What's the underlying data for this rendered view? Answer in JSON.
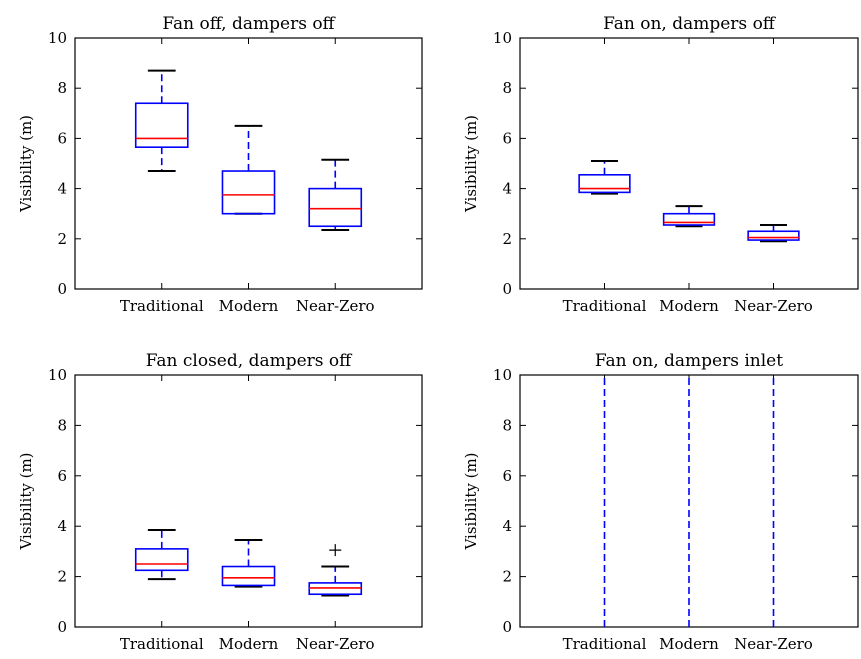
{
  "chart_data": [
    {
      "type": "boxplot",
      "title": "Fan off, dampers off",
      "ylabel": "Visibility (m)",
      "xlabel": "",
      "ylim": [
        0,
        10
      ],
      "yticks": [
        0,
        2,
        4,
        6,
        8,
        10
      ],
      "grid": false,
      "categories": [
        "Traditional",
        "Modern",
        "Near-Zero"
      ],
      "boxes": [
        {
          "whislo": 4.7,
          "q1": 5.65,
          "med": 6.0,
          "q3": 7.4,
          "whishi": 8.7,
          "fliers": []
        },
        {
          "whislo": 3.0,
          "q1": 3.0,
          "med": 3.75,
          "q3": 4.7,
          "whishi": 6.5,
          "fliers": []
        },
        {
          "whislo": 2.35,
          "q1": 2.5,
          "med": 3.2,
          "q3": 4.0,
          "whishi": 5.15,
          "fliers": []
        }
      ]
    },
    {
      "type": "boxplot",
      "title": "Fan on, dampers off",
      "ylabel": "Visibility (m)",
      "xlabel": "",
      "ylim": [
        0,
        10
      ],
      "yticks": [
        0,
        2,
        4,
        6,
        8,
        10
      ],
      "grid": false,
      "categories": [
        "Traditional",
        "Modern",
        "Near-Zero"
      ],
      "boxes": [
        {
          "whislo": 3.8,
          "q1": 3.85,
          "med": 4.0,
          "q3": 4.55,
          "whishi": 5.1,
          "fliers": []
        },
        {
          "whislo": 2.5,
          "q1": 2.55,
          "med": 2.65,
          "q3": 3.0,
          "whishi": 3.3,
          "fliers": []
        },
        {
          "whislo": 1.9,
          "q1": 1.95,
          "med": 2.05,
          "q3": 2.3,
          "whishi": 2.55,
          "fliers": []
        }
      ]
    },
    {
      "type": "boxplot",
      "title": "Fan closed, dampers off",
      "ylabel": "Visibility (m)",
      "xlabel": "",
      "ylim": [
        0,
        10
      ],
      "yticks": [
        0,
        2,
        4,
        6,
        8,
        10
      ],
      "grid": false,
      "categories": [
        "Traditional",
        "Modern",
        "Near-Zero"
      ],
      "boxes": [
        {
          "whislo": 1.9,
          "q1": 2.25,
          "med": 2.5,
          "q3": 3.1,
          "whishi": 3.85,
          "fliers": []
        },
        {
          "whislo": 1.6,
          "q1": 1.65,
          "med": 1.95,
          "q3": 2.4,
          "whishi": 3.45,
          "fliers": []
        },
        {
          "whislo": 1.25,
          "q1": 1.3,
          "med": 1.55,
          "q3": 1.75,
          "whishi": 2.4,
          "fliers": [
            3.05
          ]
        }
      ]
    },
    {
      "type": "boxplot",
      "title": "Fan on, dampers inlet",
      "ylabel": "Visibility (m)",
      "xlabel": "",
      "ylim": [
        0,
        10
      ],
      "yticks": [
        0,
        2,
        4,
        6,
        8,
        10
      ],
      "grid": false,
      "categories": [
        "Traditional",
        "Modern",
        "Near-Zero"
      ],
      "boxes": [
        {
          "whislo": 0,
          "q1": 0,
          "med": 0,
          "q3": 0,
          "whishi": 10,
          "fliers": []
        },
        {
          "whislo": 0,
          "q1": 0,
          "med": 0,
          "q3": 0,
          "whishi": 10,
          "fliers": []
        },
        {
          "whislo": 0,
          "q1": 0,
          "med": 0,
          "q3": 0,
          "whishi": 10,
          "fliers": []
        }
      ]
    }
  ],
  "colors": {
    "box": "#0000ff",
    "median": "#ff0000",
    "cap": "#000000",
    "axes": "#000000",
    "background": "#ffffff"
  }
}
